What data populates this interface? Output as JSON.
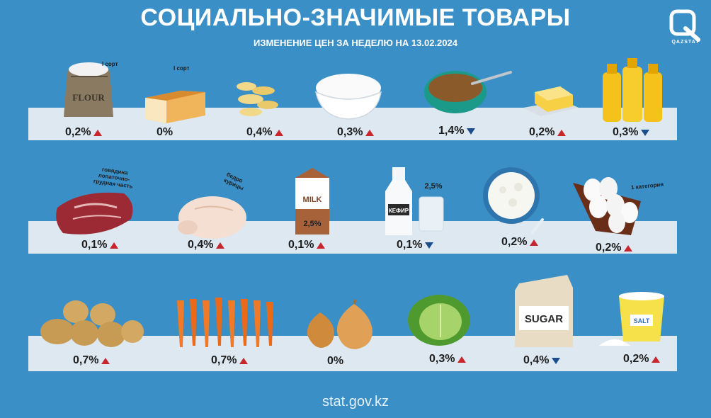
{
  "header": {
    "title": "СОЦИАЛЬНО-ЗНАЧИМЫЕ ТОВАРЫ",
    "subtitle": "ИЗМЕНЕНИЕ ЦЕН ЗА НЕДЕЛЮ НА 13.02.2024",
    "logo_text": "QAZSTAT"
  },
  "colors": {
    "background": "#3a8fc7",
    "band": "#dde8f1",
    "up": "#c8262d",
    "down": "#1d4e8c"
  },
  "row1": [
    {
      "icon": "flour-sack-icon",
      "package_text": "FLOUR",
      "note": "I сорт",
      "value": "0,2%",
      "direction": "up"
    },
    {
      "icon": "bread-loaf-icon",
      "note": "I сорт",
      "value": "0%",
      "direction": "none"
    },
    {
      "icon": "pasta-icon",
      "value": "0,4%",
      "direction": "up"
    },
    {
      "icon": "rice-bowl-icon",
      "value": "0,3%",
      "direction": "up"
    },
    {
      "icon": "buckwheat-bowl-icon",
      "value": "1,4%",
      "direction": "down"
    },
    {
      "icon": "butter-icon",
      "value": "0,2%",
      "direction": "up"
    },
    {
      "icon": "sunflower-oil-icon",
      "value": "0,3%",
      "direction": "down"
    }
  ],
  "row2": [
    {
      "icon": "beef-icon",
      "note_lines": [
        "говядина",
        "лопаточно-",
        "грудная часть"
      ],
      "value": "0,1%",
      "direction": "up"
    },
    {
      "icon": "chicken-thigh-icon",
      "note_lines": [
        "бедро",
        "курицы"
      ],
      "value": "0,4%",
      "direction": "up"
    },
    {
      "icon": "milk-carton-icon",
      "package_text": "MILK",
      "fat_label": "2,5%",
      "value": "0,1%",
      "direction": "up"
    },
    {
      "icon": "kefir-bottle-icon",
      "package_text": "КЕФИР",
      "fat_label": "2,5%",
      "value": "0,1%",
      "direction": "down"
    },
    {
      "icon": "cottage-cheese-icon",
      "value": "0,2%",
      "direction": "up"
    },
    {
      "icon": "eggs-icon",
      "note": "1 категория",
      "value": "0,2%",
      "direction": "up"
    }
  ],
  "row3": [
    {
      "icon": "potato-icon",
      "value": "0,7%",
      "direction": "up"
    },
    {
      "icon": "carrot-icon",
      "value": "0,7%",
      "direction": "up"
    },
    {
      "icon": "onion-icon",
      "value": "0%",
      "direction": "none"
    },
    {
      "icon": "cabbage-icon",
      "value": "0,3%",
      "direction": "up"
    },
    {
      "icon": "sugar-bag-icon",
      "package_text": "SUGAR",
      "value": "0,4%",
      "direction": "down"
    },
    {
      "icon": "salt-icon",
      "package_text": "SALT",
      "value": "0,2%",
      "direction": "up"
    }
  ],
  "footer": {
    "site": "stat.gov.kz"
  }
}
